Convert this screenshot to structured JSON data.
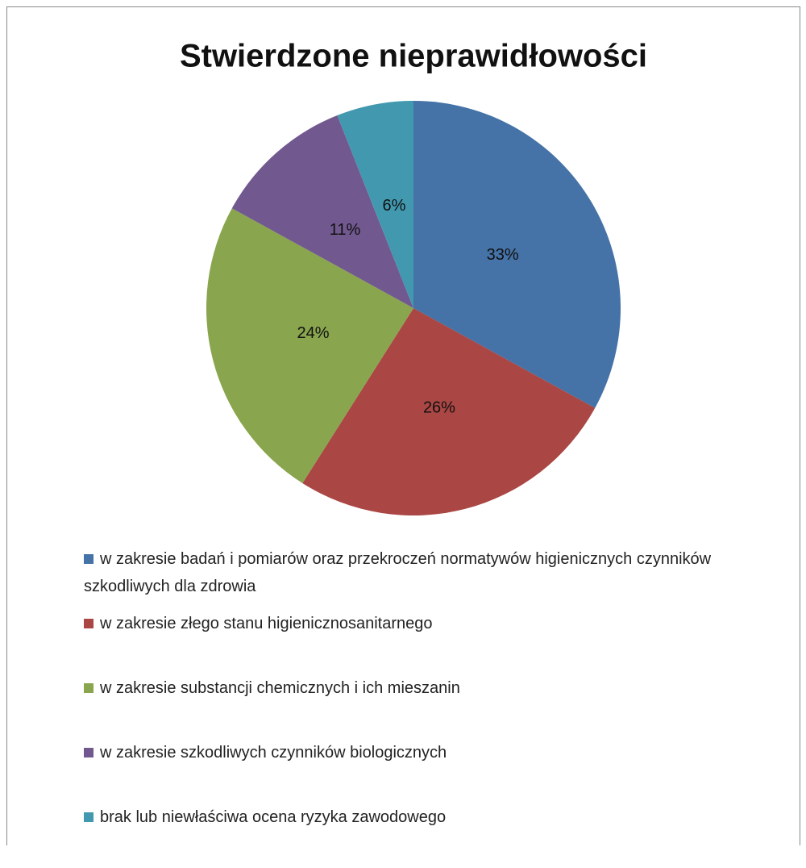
{
  "chart_data": {
    "type": "pie",
    "title": "Stwierdzone nieprawidłowości",
    "categories": [
      "w zakresie badań i pomiarów oraz przekroczeń normatywów higienicznych czynników szkodliwych dla zdrowia",
      "w zakresie złego stanu higienicznosanitarnego",
      "w zakresie substancji chemicznych i ich mieszanin",
      "w zakresie szkodliwych czynników biologicznych",
      "brak lub niewłaściwa ocena ryzyka zawodowego"
    ],
    "values": [
      33,
      26,
      24,
      11,
      6
    ],
    "value_labels": [
      "33%",
      "26%",
      "24%",
      "11%",
      "6%"
    ],
    "colors": [
      "#4572a7",
      "#aa4643",
      "#89a54e",
      "#71588f",
      "#4198af"
    ],
    "legend": "bottom"
  }
}
